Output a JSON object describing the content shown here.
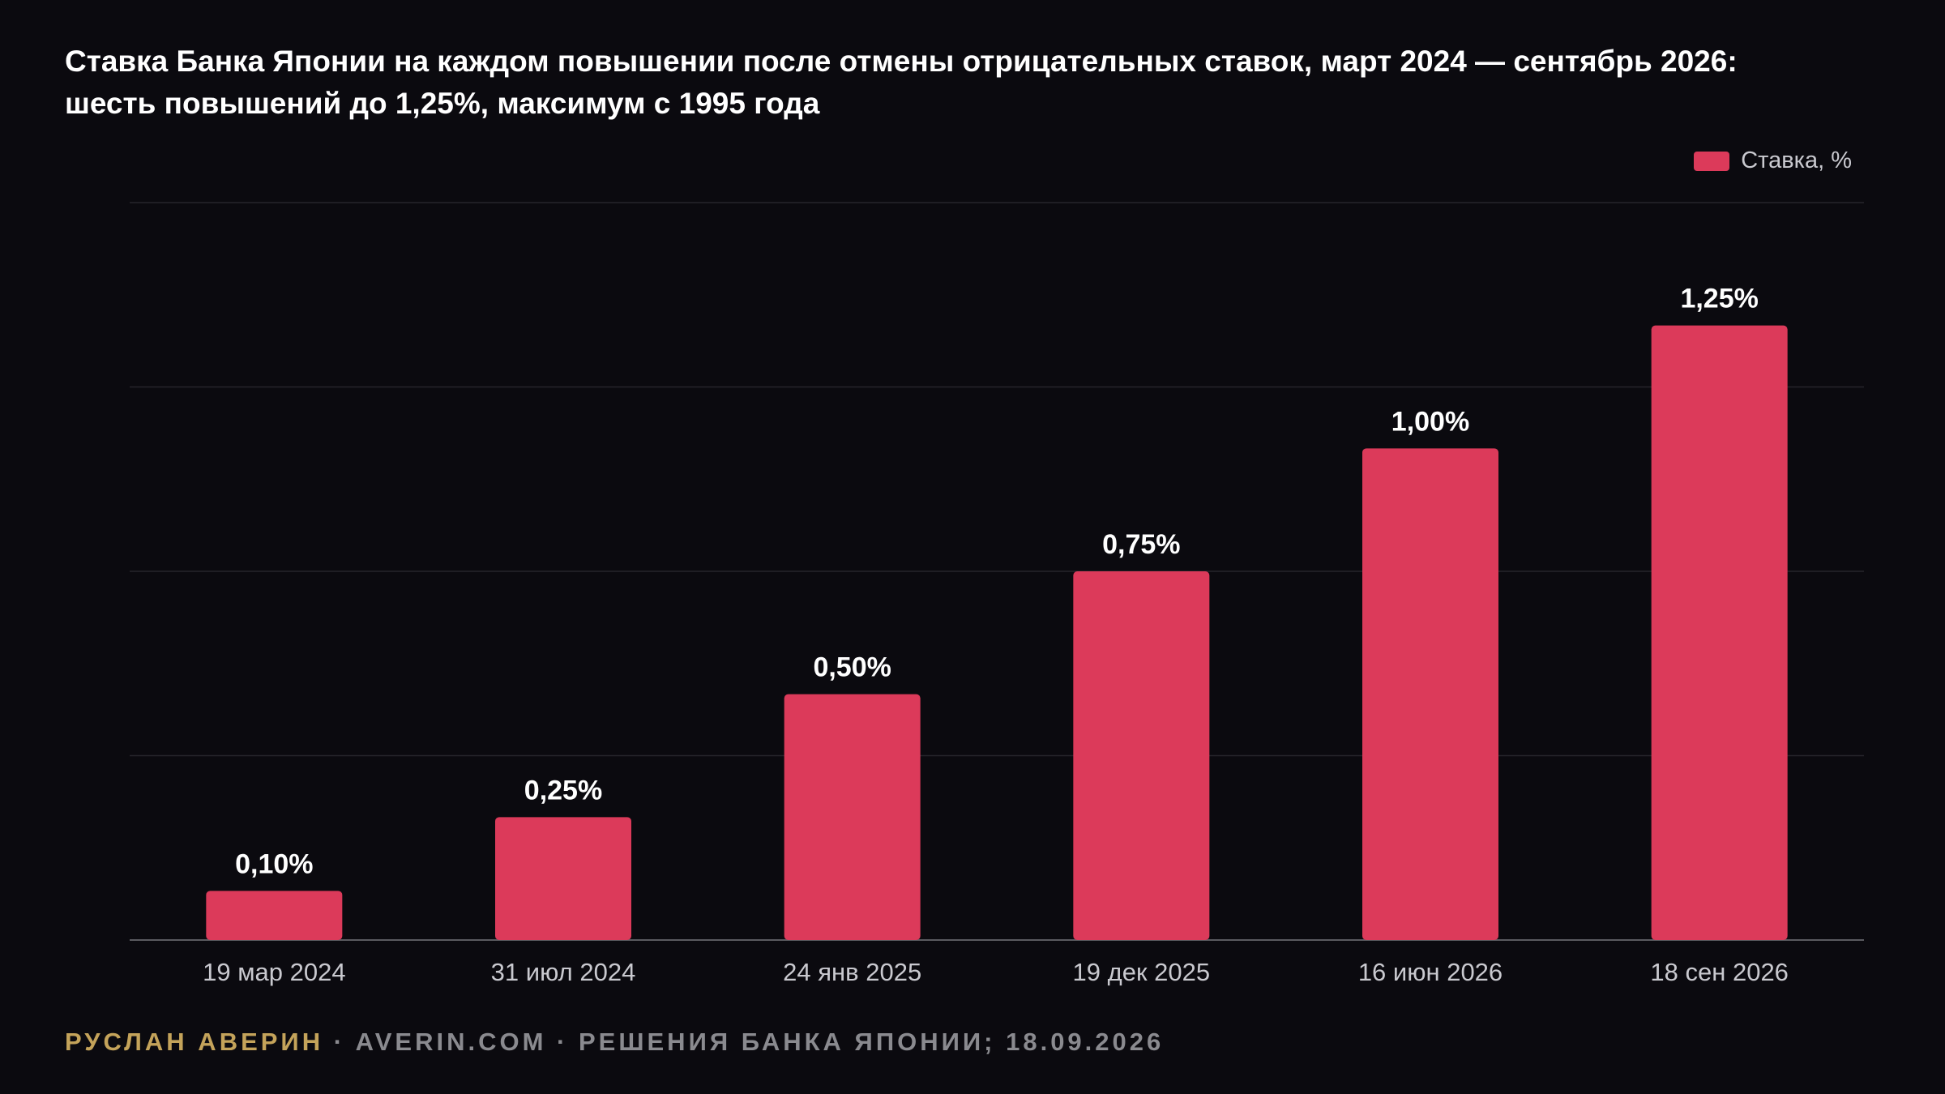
{
  "title": {
    "line1": "Ставка Банка Японии на каждом повышении после отмены отрицательных ставок, март 2024 — сентябрь 2026:",
    "line2": "шесть повышений до 1,25%, максимум с 1995 года"
  },
  "legend": {
    "label": "Ставка, %",
    "color": "#dc3a5a"
  },
  "footer": {
    "author": "РУСЛАН АВЕРИН",
    "separator": " · ",
    "site": "AVERIN.COM",
    "source": "РЕШЕНИЯ БАНКА ЯПОНИИ; 18.09.2026"
  },
  "colors": {
    "background": "#0b0a0f",
    "bar": "#dc3a5a",
    "grid": "#26252b",
    "axis": "#5a5a60",
    "tick_label": "#c9c9cf",
    "value_label": "#ffffff",
    "author": "#c4a35a"
  },
  "chart_data": {
    "type": "bar",
    "categories": [
      "19 мар 2024",
      "31 июл 2024",
      "24 янв 2025",
      "19 дек 2025",
      "16 июн 2026",
      "18 сен 2026"
    ],
    "series": [
      {
        "name": "Ставка, %",
        "values": [
          0.1,
          0.25,
          0.5,
          0.75,
          1.0,
          1.25
        ],
        "labels": [
          "0,10%",
          "0,25%",
          "0,50%",
          "0,75%",
          "1,00%",
          "1,25%"
        ]
      }
    ],
    "ylim": [
      0,
      1.5
    ],
    "grid": true,
    "legend_position": "top-right",
    "xlabel": "",
    "ylabel": ""
  }
}
